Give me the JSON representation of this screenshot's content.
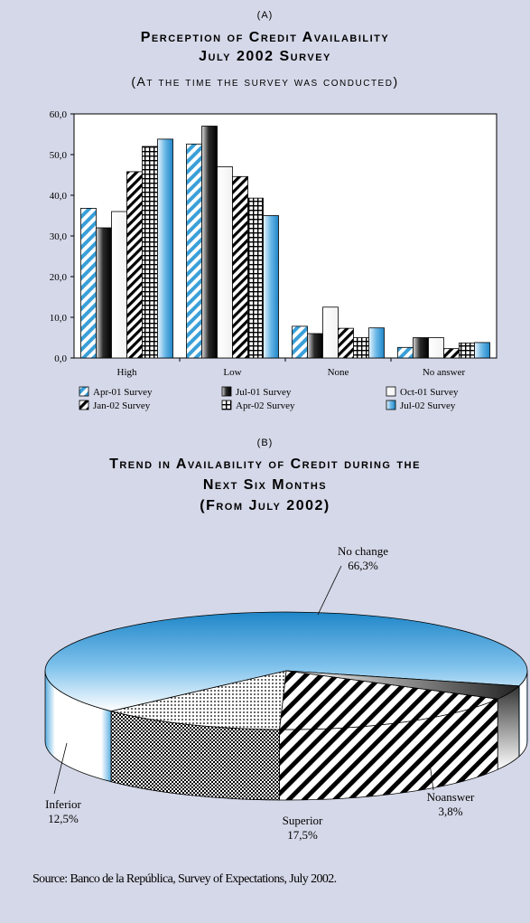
{
  "panel_a": {
    "label": "(A)",
    "title_line1": "Perception of Credit Availability",
    "title_line2": "July 2002 Survey",
    "subtitle": "(At the time the survey was conducted)"
  },
  "panel_b": {
    "label": "(B)",
    "title_line1": "Trend in Availability of Credit during the",
    "title_line2": "Next Six Months",
    "title_line3": "(From July 2002)"
  },
  "source": "Source: Banco de la República, Survey of Expectations, July 2002.",
  "chart_data": [
    {
      "type": "bar",
      "categories": [
        "High",
        "Low",
        "None",
        "No answer"
      ],
      "ylim": [
        0,
        60
      ],
      "yticks": [
        "0,0",
        "10,0",
        "20,0",
        "30,0",
        "40,0",
        "50,0",
        "60,0"
      ],
      "grid": false,
      "legend_position": "bottom",
      "series": [
        {
          "name": "Apr-01 Survey",
          "values": [
            36.8,
            52.6,
            7.8,
            2.6
          ],
          "pattern": "diag-blue",
          "color": "#3a9fd8"
        },
        {
          "name": "Jul-01 Survey",
          "values": [
            32.0,
            57.0,
            6.0,
            5.0
          ],
          "pattern": "dark-cyl",
          "color": "#222222"
        },
        {
          "name": "Oct-01 Survey",
          "values": [
            36.0,
            47.0,
            12.5,
            5.0
          ],
          "pattern": "white",
          "color": "#ffffff"
        },
        {
          "name": "Jan-02 Survey",
          "values": [
            45.8,
            44.6,
            7.3,
            2.3
          ],
          "pattern": "diag-black",
          "color": "#000000"
        },
        {
          "name": "Apr-02 Survey",
          "values": [
            52.0,
            39.3,
            5.0,
            3.7
          ],
          "pattern": "grid",
          "color": "#000000"
        },
        {
          "name": "Jul-02 Survey",
          "values": [
            53.8,
            35.0,
            7.4,
            3.8
          ],
          "pattern": "blue-grad",
          "color": "#3a9fd8"
        }
      ]
    },
    {
      "type": "pie",
      "labels": [
        "No change",
        "Superior",
        "Inferior",
        "Noanswer"
      ],
      "values": [
        66.3,
        17.5,
        12.5,
        3.8
      ],
      "display_values": [
        "66,3%",
        "17,5%",
        "12,5%",
        "3,8%"
      ],
      "style": "3d"
    }
  ]
}
